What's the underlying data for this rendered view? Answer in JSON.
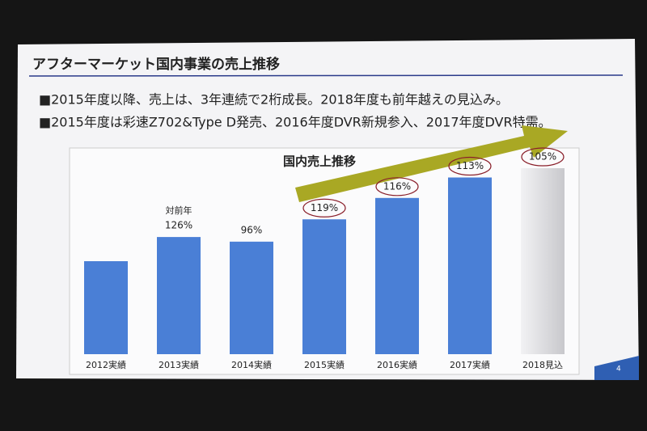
{
  "header": {
    "title": "アフターマーケット国内事業の売上推移",
    "page_number": "4"
  },
  "bullets": [
    "■2015年度以降、売上は、3年連続で2桁成長。2018年度も前年越えの見込み。",
    "■2015年度は彩速Z702&Type D発売、2016年度DVR新規参入、2017年度DVR特需。"
  ],
  "chart_data": {
    "type": "bar",
    "title": "国内売上推移",
    "categories": [
      "2012実績",
      "2013実績",
      "2014実績",
      "2015実績",
      "2016実績",
      "2017実績",
      "2018見込"
    ],
    "values": [
      100,
      126,
      121,
      145,
      168,
      190,
      200
    ],
    "colors": [
      "#4a7fd6",
      "#4a7fd6",
      "#4a7fd6",
      "#4a7fd6",
      "#4a7fd6",
      "#4a7fd6",
      "#d6d6da"
    ],
    "growth_note": "対前年",
    "growth_labels": [
      null,
      "126%",
      "96%",
      "119%",
      "116%",
      "113%",
      "105%"
    ]
  }
}
